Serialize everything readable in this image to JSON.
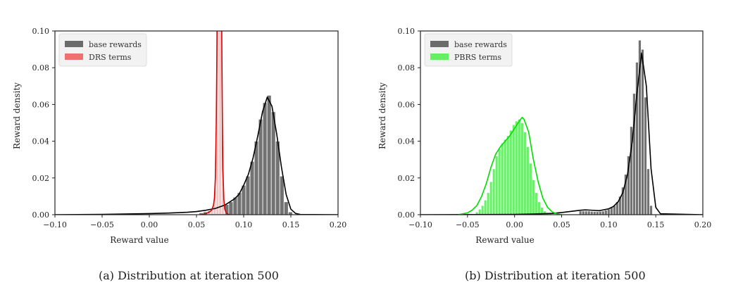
{
  "charts": [
    {
      "caption": "(a) Distribution at iteration 500",
      "chart_data": {
        "type": "bar",
        "xlabel": "Reward value",
        "ylabel": "Reward density",
        "xlim": [
          -0.1,
          0.2
        ],
        "ylim": [
          0.0,
          0.1
        ],
        "xticks": [
          -0.1,
          -0.05,
          0.0,
          0.05,
          0.1,
          0.15,
          0.2
        ],
        "xtick_labels": [
          "−0.10",
          "−0.05",
          "0.00",
          "0.05",
          "0.10",
          "0.15",
          "0.20"
        ],
        "yticks": [
          0.0,
          0.02,
          0.04,
          0.06,
          0.08,
          0.1
        ],
        "ytick_labels": [
          "0.00",
          "0.02",
          "0.04",
          "0.06",
          "0.08",
          "0.10"
        ],
        "legend_position": "top-left",
        "grid": false,
        "series": [
          {
            "name": "base rewards",
            "color": "#6b6b6b",
            "line_color": "#000000",
            "bin_width": 0.0045,
            "x": [
              0.055,
              0.0595,
              0.064,
              0.0685,
              0.073,
              0.0775,
              0.082,
              0.0865,
              0.091,
              0.0955,
              0.1,
              0.1045,
              0.109,
              0.1135,
              0.118,
              0.1225,
              0.127,
              0.1315,
              0.136,
              0.1405,
              0.145,
              0.1495
            ],
            "values": [
              0.001,
              0.0015,
              0.002,
              0.0025,
              0.003,
              0.004,
              0.0055,
              0.007,
              0.0095,
              0.012,
              0.016,
              0.021,
              0.029,
              0.04,
              0.052,
              0.061,
              0.065,
              0.056,
              0.04,
              0.021,
              0.007,
              0.0015
            ],
            "kde_x": [
              -0.1,
              -0.05,
              0.0,
              0.02,
              0.04,
              0.05,
              0.06,
              0.07,
              0.08,
              0.09,
              0.095,
              0.1,
              0.105,
              0.11,
              0.115,
              0.12,
              0.125,
              0.13,
              0.135,
              0.14,
              0.145,
              0.15,
              0.155,
              0.16,
              0.2
            ],
            "kde_y": [
              0.0,
              0.0002,
              0.0006,
              0.0009,
              0.0013,
              0.0017,
              0.0024,
              0.0034,
              0.0052,
              0.0085,
              0.011,
              0.016,
              0.022,
              0.031,
              0.043,
              0.056,
              0.064,
              0.059,
              0.044,
              0.026,
              0.011,
              0.003,
              0.0007,
              0.0001,
              0.0
            ]
          },
          {
            "name": "DRS terms",
            "color": "#f07070",
            "line_color": "#dd0000",
            "bin_width": 0.001,
            "x": [
              0.062,
              0.063,
              0.064,
              0.065,
              0.066,
              0.067,
              0.068,
              0.069,
              0.07,
              0.071,
              0.072,
              0.073,
              0.074,
              0.075,
              0.076,
              0.077,
              0.078,
              0.079,
              0.08
            ],
            "values": [
              0.0005,
              0.001,
              0.001,
              0.0015,
              0.002,
              0.003,
              0.005,
              0.012,
              0.03,
              0.06,
              0.1,
              0.12,
              0.1,
              0.12,
              0.1,
              0.06,
              0.02,
              0.006,
              0.002
            ],
            "kde_x": [
              0.055,
              0.06,
              0.063,
              0.066,
              0.068,
              0.069,
              0.07,
              0.071,
              0.0715,
              0.072,
              0.0765,
              0.077,
              0.0775,
              0.078,
              0.079,
              0.08,
              0.082,
              0.085
            ],
            "kde_y": [
              0.0,
              0.0006,
              0.0012,
              0.0024,
              0.005,
              0.009,
              0.02,
              0.05,
              0.08,
              0.12,
              0.12,
              0.08,
              0.05,
              0.025,
              0.008,
              0.003,
              0.0006,
              0.0
            ]
          }
        ]
      }
    },
    {
      "caption": "(b) Distribution at iteration 500",
      "chart_data": {
        "type": "bar",
        "xlabel": "Reward value",
        "ylabel": "Reward density",
        "xlim": [
          -0.1,
          0.2
        ],
        "ylim": [
          0.0,
          0.1
        ],
        "xticks": [
          -0.1,
          -0.05,
          0.0,
          0.05,
          0.1,
          0.15,
          0.2
        ],
        "xtick_labels": [
          "−0.10",
          "−0.05",
          "0.00",
          "0.05",
          "0.10",
          "0.15",
          "0.20"
        ],
        "yticks": [
          0.0,
          0.02,
          0.04,
          0.06,
          0.08,
          0.1
        ],
        "ytick_labels": [
          "0.00",
          "0.02",
          "0.04",
          "0.06",
          "0.08",
          "0.10"
        ],
        "legend_position": "top-left",
        "grid": false,
        "series": [
          {
            "name": "base rewards",
            "color": "#6b6b6b",
            "line_color": "#000000",
            "bin_width": 0.003,
            "x": [
              0.07,
              0.073,
              0.076,
              0.079,
              0.082,
              0.085,
              0.088,
              0.091,
              0.094,
              0.097,
              0.1,
              0.103,
              0.106,
              0.109,
              0.112,
              0.115,
              0.118,
              0.121,
              0.124,
              0.127,
              0.13,
              0.133,
              0.136,
              0.139,
              0.142,
              0.145
            ],
            "values": [
              0.002,
              0.002,
              0.002,
              0.002,
              0.0018,
              0.0017,
              0.0017,
              0.0018,
              0.002,
              0.0025,
              0.003,
              0.004,
              0.005,
              0.007,
              0.01,
              0.015,
              0.022,
              0.032,
              0.048,
              0.066,
              0.083,
              0.095,
              0.09,
              0.064,
              0.025,
              0.005
            ],
            "kde_x": [
              -0.1,
              -0.02,
              0.0,
              0.02,
              0.04,
              0.05,
              0.06,
              0.07,
              0.075,
              0.08,
              0.09,
              0.1,
              0.105,
              0.11,
              0.115,
              0.12,
              0.125,
              0.13,
              0.135,
              0.14,
              0.145,
              0.15,
              0.155,
              0.2
            ],
            "kde_y": [
              0.0,
              0.0001,
              0.0002,
              0.0004,
              0.0007,
              0.0012,
              0.0018,
              0.0024,
              0.0026,
              0.0025,
              0.0022,
              0.0032,
              0.0045,
              0.007,
              0.012,
              0.022,
              0.04,
              0.066,
              0.088,
              0.07,
              0.025,
              0.004,
              0.0005,
              0.0
            ]
          },
          {
            "name": "PBRS terms",
            "color": "#66ee66",
            "line_color": "#00dd00",
            "bin_width": 0.003,
            "x": [
              -0.04,
              -0.037,
              -0.034,
              -0.031,
              -0.028,
              -0.025,
              -0.022,
              -0.019,
              -0.016,
              -0.013,
              -0.01,
              -0.007,
              -0.004,
              -0.001,
              0.002,
              0.005,
              0.008,
              0.011,
              0.014,
              0.017,
              0.02,
              0.023,
              0.026,
              0.029,
              0.032,
              0.035,
              0.038
            ],
            "values": [
              0.0015,
              0.003,
              0.005,
              0.008,
              0.012,
              0.018,
              0.025,
              0.032,
              0.036,
              0.039,
              0.041,
              0.043,
              0.046,
              0.049,
              0.051,
              0.052,
              0.05,
              0.045,
              0.037,
              0.028,
              0.019,
              0.012,
              0.007,
              0.004,
              0.002,
              0.001,
              0.0005
            ],
            "kde_x": [
              -0.06,
              -0.05,
              -0.045,
              -0.04,
              -0.035,
              -0.03,
              -0.025,
              -0.02,
              -0.015,
              -0.01,
              -0.005,
              0.0,
              0.005,
              0.008,
              0.01,
              0.015,
              0.02,
              0.025,
              0.03,
              0.035,
              0.04,
              0.045,
              0.05
            ],
            "kde_y": [
              0.0,
              0.001,
              0.0025,
              0.005,
              0.01,
              0.017,
              0.026,
              0.033,
              0.037,
              0.04,
              0.043,
              0.047,
              0.051,
              0.053,
              0.052,
              0.045,
              0.03,
              0.018,
              0.009,
              0.004,
              0.0015,
              0.0005,
              0.0
            ]
          }
        ]
      }
    }
  ]
}
